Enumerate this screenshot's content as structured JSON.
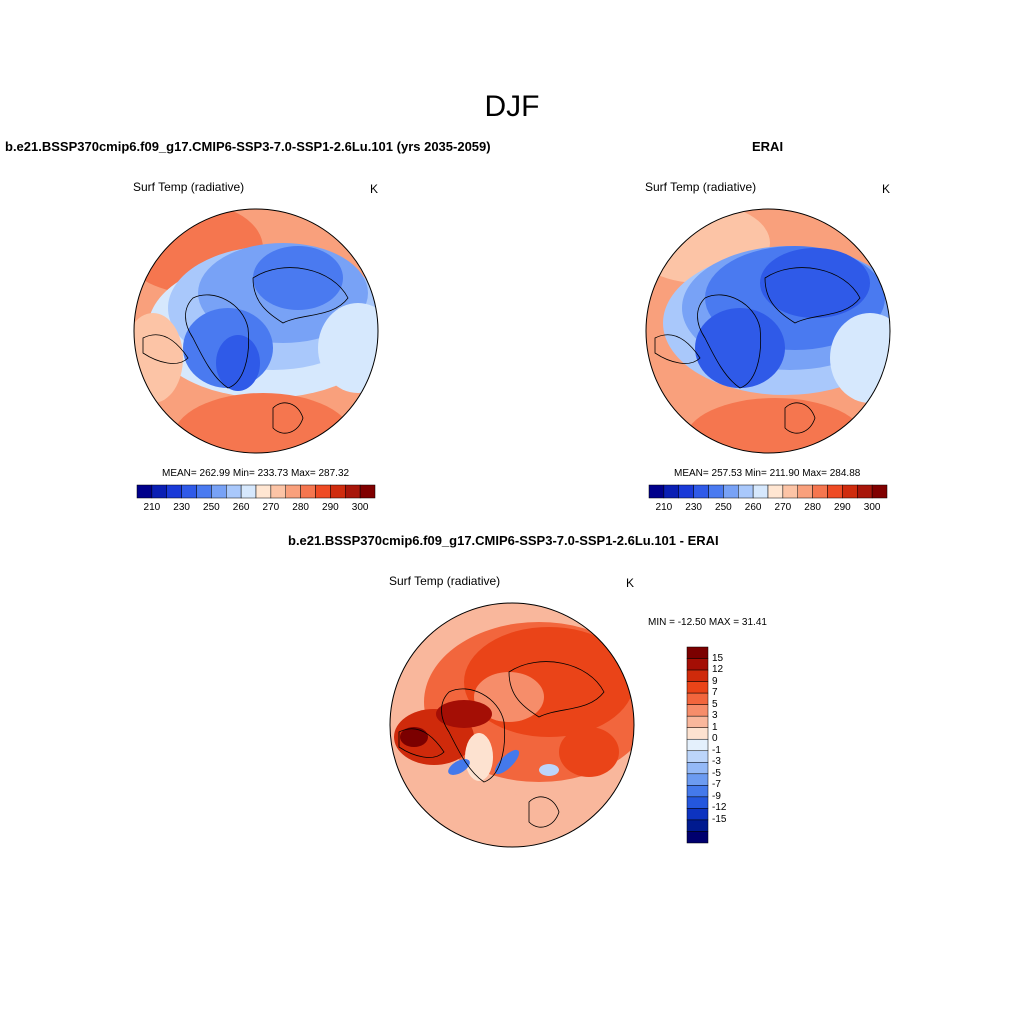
{
  "title": "DJF",
  "colors": {
    "temp_scale": [
      "#00008b",
      "#0a1fb4",
      "#1a3ad8",
      "#2f5ae8",
      "#4a7af0",
      "#78a2f6",
      "#a9c8fb",
      "#d6e8fd",
      "#ffe6d2",
      "#fcc4a6",
      "#f9a07c",
      "#f5764f",
      "#ee4b24",
      "#cf2c0e",
      "#a8160a",
      "#800000"
    ],
    "diff_scale": [
      "#7b0000",
      "#a40e05",
      "#cf2a0b",
      "#ea4418",
      "#f2663d",
      "#f68d6a",
      "#f9b79c",
      "#fde2d0",
      "#e4f0fc",
      "#bcd5fa",
      "#94b9f7",
      "#6c9bf1",
      "#4479eb",
      "#2457de",
      "#0d33c0",
      "#001a8f",
      "#00006e"
    ]
  },
  "panels": [
    {
      "case": "b.e21.BSSP370cmip6.f09_g17.CMIP6-SSP3-7.0-SSP1-2.6Lu.101 (yrs 2035-2059)",
      "variable": "Surf Temp (radiative)",
      "units": "K",
      "stats": "MEAN= 262.99  Min= 233.73  Max= 287.32",
      "colorbar_ticks": [
        "210",
        "230",
        "250",
        "260",
        "270",
        "280",
        "290",
        "300"
      ]
    },
    {
      "case": "ERAI",
      "variable": "Surf Temp (radiative)",
      "units": "K",
      "stats": "MEAN= 257.53  Min= 211.90  Max= 284.88",
      "colorbar_ticks": [
        "210",
        "230",
        "250",
        "260",
        "270",
        "280",
        "290",
        "300"
      ]
    },
    {
      "case": "b.e21.BSSP370cmip6.f09_g17.CMIP6-SSP3-7.0-SSP1-2.6Lu.101 - ERAI",
      "variable": "Surf Temp (radiative)",
      "units": "K",
      "stats": "MIN = -12.50 MAX =  31.41",
      "colorbar_ticks": [
        "15",
        "12",
        "9",
        "7",
        "5",
        "3",
        "1",
        "0",
        "-1",
        "-3",
        "-5",
        "-7",
        "-9",
        "-12",
        "-15"
      ]
    }
  ]
}
